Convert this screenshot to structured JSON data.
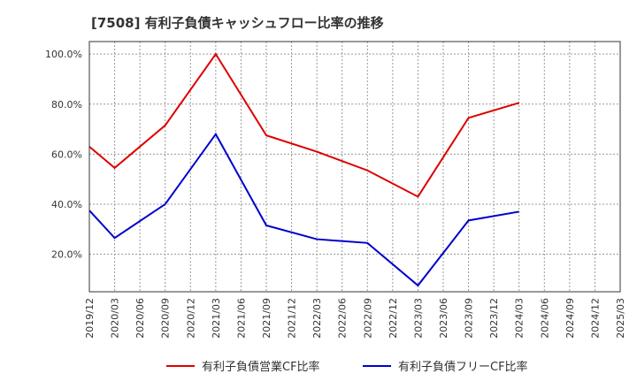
{
  "chart_data": {
    "type": "line",
    "title": "[7508]  有利子負債キャッシュフロー比率の推移",
    "xlabel": "",
    "ylabel": "",
    "ylim": [
      5,
      105
    ],
    "yticks": [
      20,
      40,
      60,
      80,
      100
    ],
    "ytick_labels": [
      "20.0%",
      "40.0%",
      "60.0%",
      "80.0%",
      "100.0%"
    ],
    "categories": [
      "2019/12",
      "2020/03",
      "2020/06",
      "2020/09",
      "2020/12",
      "2021/03",
      "2021/06",
      "2021/09",
      "2021/12",
      "2022/03",
      "2022/06",
      "2022/09",
      "2022/12",
      "2023/03",
      "2023/06",
      "2023/09",
      "2023/12",
      "2024/03",
      "2024/06",
      "2024/09",
      "2024/12",
      "2025/03"
    ],
    "grid": true,
    "legend_position": "bottom",
    "series": [
      {
        "name": "有利子負債営業CF比率",
        "color": "#dd0000",
        "points": [
          [
            "2019/12",
            63.0
          ],
          [
            "2020/03",
            54.5
          ],
          [
            "2020/09",
            71.5
          ],
          [
            "2021/03",
            100.0
          ],
          [
            "2021/09",
            67.5
          ],
          [
            "2022/03",
            61.0
          ],
          [
            "2022/09",
            53.5
          ],
          [
            "2023/03",
            43.0
          ],
          [
            "2023/09",
            74.5
          ],
          [
            "2024/03",
            80.5
          ]
        ]
      },
      {
        "name": "有利子負債フリーCF比率",
        "color": "#0000cc",
        "points": [
          [
            "2019/12",
            37.5
          ],
          [
            "2020/03",
            26.5
          ],
          [
            "2020/09",
            40.0
          ],
          [
            "2021/03",
            68.0
          ],
          [
            "2021/09",
            31.5
          ],
          [
            "2022/03",
            26.0
          ],
          [
            "2022/09",
            24.5
          ],
          [
            "2023/03",
            7.5
          ],
          [
            "2023/09",
            33.5
          ],
          [
            "2024/03",
            37.0
          ]
        ]
      }
    ]
  }
}
